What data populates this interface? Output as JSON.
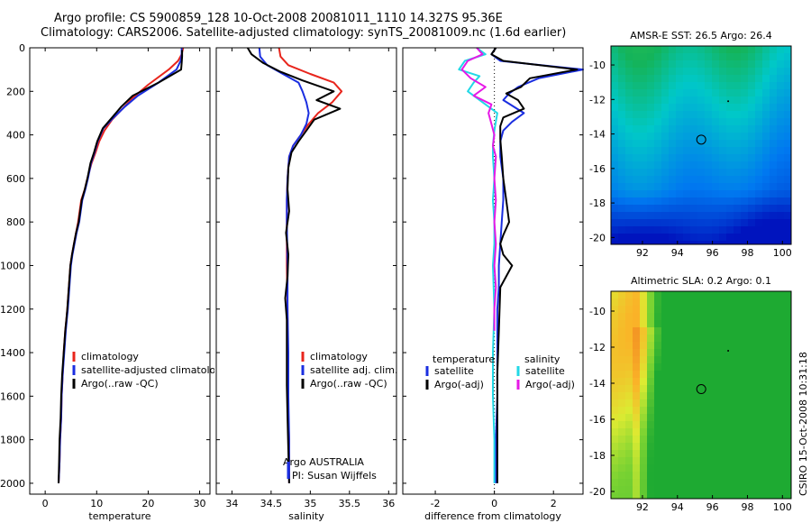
{
  "header": {
    "line1": "Argo profile: CS 5900859_128 10-Oct-2008 20081011_1110 14.327S 95.36E",
    "line2": "Climatology: CARS2006. Satellite-adjusted climatology: synTS_20081009.nc (1.6d earlier)"
  },
  "credit": "CSIRO 15-Oct-2008 10:31:18",
  "chart_data": [
    {
      "type": "line",
      "xlabel": "temperature",
      "xlim": [
        -3,
        32
      ],
      "ylim": [
        2050,
        0
      ],
      "xticks": [
        0,
        10,
        20,
        30
      ],
      "yticks": [
        0,
        200,
        400,
        600,
        800,
        1000,
        1200,
        1400,
        1600,
        1800,
        2000
      ],
      "legend": [
        "climatology",
        "satellite-adjusted climatology",
        "Argo(..raw -QC)"
      ],
      "series": [
        {
          "name": "climatology",
          "color": "#e8251c",
          "x": [
            26.8,
            26.5,
            25.8,
            24,
            20,
            17,
            15,
            13,
            11.5,
            10.5,
            9.8,
            9,
            8.2,
            7.7,
            7,
            6.4,
            6,
            5.6,
            5.2,
            4.9,
            4.6,
            4.3,
            4.1,
            3.9,
            3.6,
            3.4,
            3.2,
            3.1,
            3,
            2.9,
            2.8,
            2.7,
            2.6
          ],
          "y": [
            0,
            30,
            60,
            100,
            170,
            230,
            280,
            330,
            380,
            430,
            480,
            530,
            600,
            650,
            700,
            800,
            850,
            900,
            950,
            1000,
            1100,
            1200,
            1250,
            1300,
            1400,
            1500,
            1600,
            1700,
            1750,
            1800,
            1900,
            1950,
            2000
          ]
        },
        {
          "name": "satellite-adjusted",
          "color": "#1a2ee0",
          "x": [
            26.5,
            26.5,
            26.3,
            25.5,
            22,
            18,
            15.5,
            13.3,
            11.3,
            10.2,
            9.6,
            8.9,
            8.3,
            7.8,
            7.2,
            6.6,
            6.1,
            5.7,
            5.3,
            5,
            4.7,
            4.4,
            4.2,
            4,
            3.7,
            3.4,
            3.2,
            3.1,
            3,
            2.9,
            2.8,
            2.7,
            2.6
          ],
          "y": [
            0,
            30,
            60,
            100,
            160,
            220,
            270,
            320,
            370,
            430,
            480,
            530,
            600,
            650,
            700,
            800,
            850,
            900,
            950,
            1000,
            1100,
            1200,
            1250,
            1300,
            1400,
            1500,
            1600,
            1700,
            1750,
            1800,
            1900,
            1950,
            2000
          ]
        },
        {
          "name": "Argo",
          "color": "#000000",
          "x": [
            26.6,
            26.6,
            26.5,
            26.4,
            22,
            17,
            14.8,
            13,
            11.2,
            10.1,
            9.5,
            8.8,
            8.2,
            7.7,
            7.1,
            6.5,
            6,
            5.6,
            5.2,
            4.9,
            4.6,
            4.3,
            4.1,
            3.9,
            3.6,
            3.3,
            3.1,
            3,
            2.9,
            2.8,
            2.7,
            2.6
          ],
          "y": [
            10,
            40,
            70,
            100,
            160,
            220,
            270,
            320,
            370,
            430,
            480,
            530,
            600,
            650,
            700,
            800,
            850,
            900,
            950,
            1000,
            1100,
            1200,
            1250,
            1300,
            1400,
            1500,
            1600,
            1700,
            1750,
            1800,
            1900,
            2000
          ]
        }
      ]
    },
    {
      "type": "line",
      "xlabel": "salinity",
      "xlim": [
        33.8,
        36.1
      ],
      "ylim": [
        2050,
        0
      ],
      "xticks": [
        34,
        34.5,
        35,
        35.5,
        36
      ],
      "yticks": [
        0,
        200,
        400,
        600,
        800,
        1000,
        1200,
        1400,
        1600,
        1800,
        2000
      ],
      "legend": [
        "climatology",
        "satellite adj. clim.",
        "Argo(..raw -QC)"
      ],
      "annotation": [
        "Argo AUSTRALIA",
        "PI: Susan Wijffels"
      ],
      "series": [
        {
          "name": "climatology",
          "color": "#e8251c",
          "x": [
            34.6,
            34.62,
            34.72,
            35,
            35.3,
            35.4,
            35.28,
            35.1,
            34.98,
            34.88,
            34.78,
            34.73,
            34.71,
            34.7,
            34.7,
            34.7,
            34.71,
            34.71,
            34.72,
            34.72,
            34.72,
            34.73,
            34.73
          ],
          "y": [
            0,
            40,
            80,
            120,
            160,
            200,
            250,
            300,
            350,
            400,
            450,
            500,
            600,
            700,
            800,
            1000,
            1200,
            1400,
            1500,
            1600,
            1700,
            1800,
            2000
          ]
        },
        {
          "name": "satellite-adjusted",
          "color": "#1a2ee0",
          "x": [
            34.35,
            34.36,
            34.45,
            34.65,
            34.85,
            34.9,
            34.95,
            34.98,
            34.95,
            34.88,
            34.78,
            34.73,
            34.71,
            34.7,
            34.7,
            34.71,
            34.71,
            34.72,
            34.72,
            34.73,
            34.73
          ],
          "y": [
            0,
            40,
            80,
            120,
            160,
            200,
            250,
            300,
            350,
            400,
            450,
            500,
            600,
            700,
            800,
            1000,
            1200,
            1400,
            1600,
            1800,
            2000
          ]
        },
        {
          "name": "Argo",
          "color": "#000000",
          "x": [
            34.2,
            34.25,
            34.4,
            34.62,
            34.9,
            35.3,
            35.08,
            35.38,
            35.05,
            34.95,
            34.85,
            34.76,
            34.72,
            34.71,
            34.73,
            34.69,
            34.72,
            34.71,
            34.68,
            34.7,
            34.7,
            34.7,
            34.71,
            34.72,
            34.73
          ],
          "y": [
            0,
            30,
            70,
            110,
            150,
            200,
            240,
            280,
            330,
            380,
            430,
            480,
            550,
            650,
            750,
            850,
            950,
            1050,
            1150,
            1250,
            1400,
            1550,
            1700,
            1850,
            2000
          ]
        }
      ]
    },
    {
      "type": "line",
      "xlabel": "difference from climatology",
      "xlim": [
        -3.1,
        3
      ],
      "ylim": [
        2050,
        0
      ],
      "xticks": [
        -2,
        0,
        2
      ],
      "yticks": [
        0,
        200,
        400,
        600,
        800,
        1000,
        1200,
        1400,
        1600,
        1800,
        2000
      ],
      "legend_left_title": "temperature",
      "legend_left": [
        "satellite",
        "Argo(-adj)"
      ],
      "legend_right_title": "salinity",
      "legend_right": [
        "satellite",
        "Argo(-adj)"
      ],
      "series": [
        {
          "name": "temperature satellite",
          "color": "#1a2ee0",
          "x": [
            0.05,
            -0.1,
            0.2,
            3,
            1.5,
            0.8,
            0.5,
            0.3,
            1,
            0.6,
            0.3,
            0.2,
            0.2,
            0.3,
            0.3,
            0.25,
            0.2,
            0.15,
            0.15,
            0.1,
            0.1,
            0.1,
            0.05,
            0.05,
            0.05
          ],
          "y": [
            0,
            30,
            60,
            100,
            140,
            180,
            210,
            240,
            300,
            340,
            380,
            430,
            500,
            600,
            700,
            800,
            900,
            1000,
            1100,
            1200,
            1400,
            1600,
            1800,
            1900,
            2000
          ]
        },
        {
          "name": "temperature Argo",
          "color": "#000000",
          "x": [
            0.05,
            -0.1,
            0.3,
            2.8,
            1.2,
            0.9,
            0.4,
            0.8,
            1,
            0.3,
            0.2,
            0.2,
            0.25,
            0.3,
            0.4,
            0.5,
            0.3,
            0.2,
            0.3,
            0.6,
            0.2,
            0.15,
            0.1,
            0.1,
            0.1
          ],
          "y": [
            0,
            30,
            60,
            100,
            140,
            180,
            210,
            240,
            280,
            320,
            360,
            420,
            500,
            600,
            700,
            800,
            860,
            900,
            950,
            1000,
            1100,
            1300,
            1500,
            1800,
            2000
          ]
        },
        {
          "name": "salinity satellite",
          "color": "#22d8e6",
          "x": [
            -0.6,
            -0.3,
            -1,
            -1.2,
            -0.5,
            -0.7,
            -0.9,
            -0.3,
            0.1,
            0,
            -0.05,
            -0.05,
            0,
            -0.05,
            0,
            0,
            -0.05,
            0,
            -0.05,
            -0.05,
            0,
            0
          ],
          "y": [
            0,
            30,
            60,
            100,
            130,
            160,
            200,
            260,
            300,
            380,
            450,
            500,
            600,
            700,
            800,
            900,
            1000,
            1200,
            1400,
            1600,
            1800,
            2000
          ]
        },
        {
          "name": "salinity Argo",
          "color": "#e619e6",
          "x": [
            -0.6,
            -0.4,
            -0.9,
            -1.1,
            -0.8,
            -0.3,
            -0.7,
            -0.1,
            -0.2,
            -0.1,
            0,
            -0.05,
            0.05,
            0,
            0.05,
            0,
            0.05,
            0,
            0.05,
            0,
            0
          ],
          "y": [
            0,
            30,
            60,
            100,
            140,
            180,
            220,
            260,
            300,
            350,
            400,
            450,
            500,
            600,
            700,
            800,
            900,
            1000,
            1100,
            1200,
            1300
          ]
        }
      ]
    },
    {
      "type": "heatmap",
      "title": "AMSR-E SST: 26.5 Argo: 26.4",
      "xlim": [
        90.2,
        100.5
      ],
      "ylim": [
        -20.4,
        -8.9
      ],
      "xticks": [
        92,
        94,
        96,
        98,
        100
      ],
      "yticks": [
        -10,
        -12,
        -14,
        -16,
        -18,
        -20
      ],
      "profile_position": [
        95.36,
        -14.327
      ],
      "track_position": [
        96.9,
        -12.1
      ]
    },
    {
      "type": "heatmap",
      "title": "Altimetric SLA: 0.2 Argo: 0.1",
      "xlim": [
        90.2,
        100.5
      ],
      "ylim": [
        -20.4,
        -8.9
      ],
      "xticks": [
        92,
        94,
        96,
        98,
        100
      ],
      "yticks": [
        -10,
        -12,
        -14,
        -16,
        -18,
        -20
      ],
      "profile_position": [
        95.36,
        -14.327
      ],
      "track_position": [
        96.9,
        -12.2
      ]
    }
  ]
}
